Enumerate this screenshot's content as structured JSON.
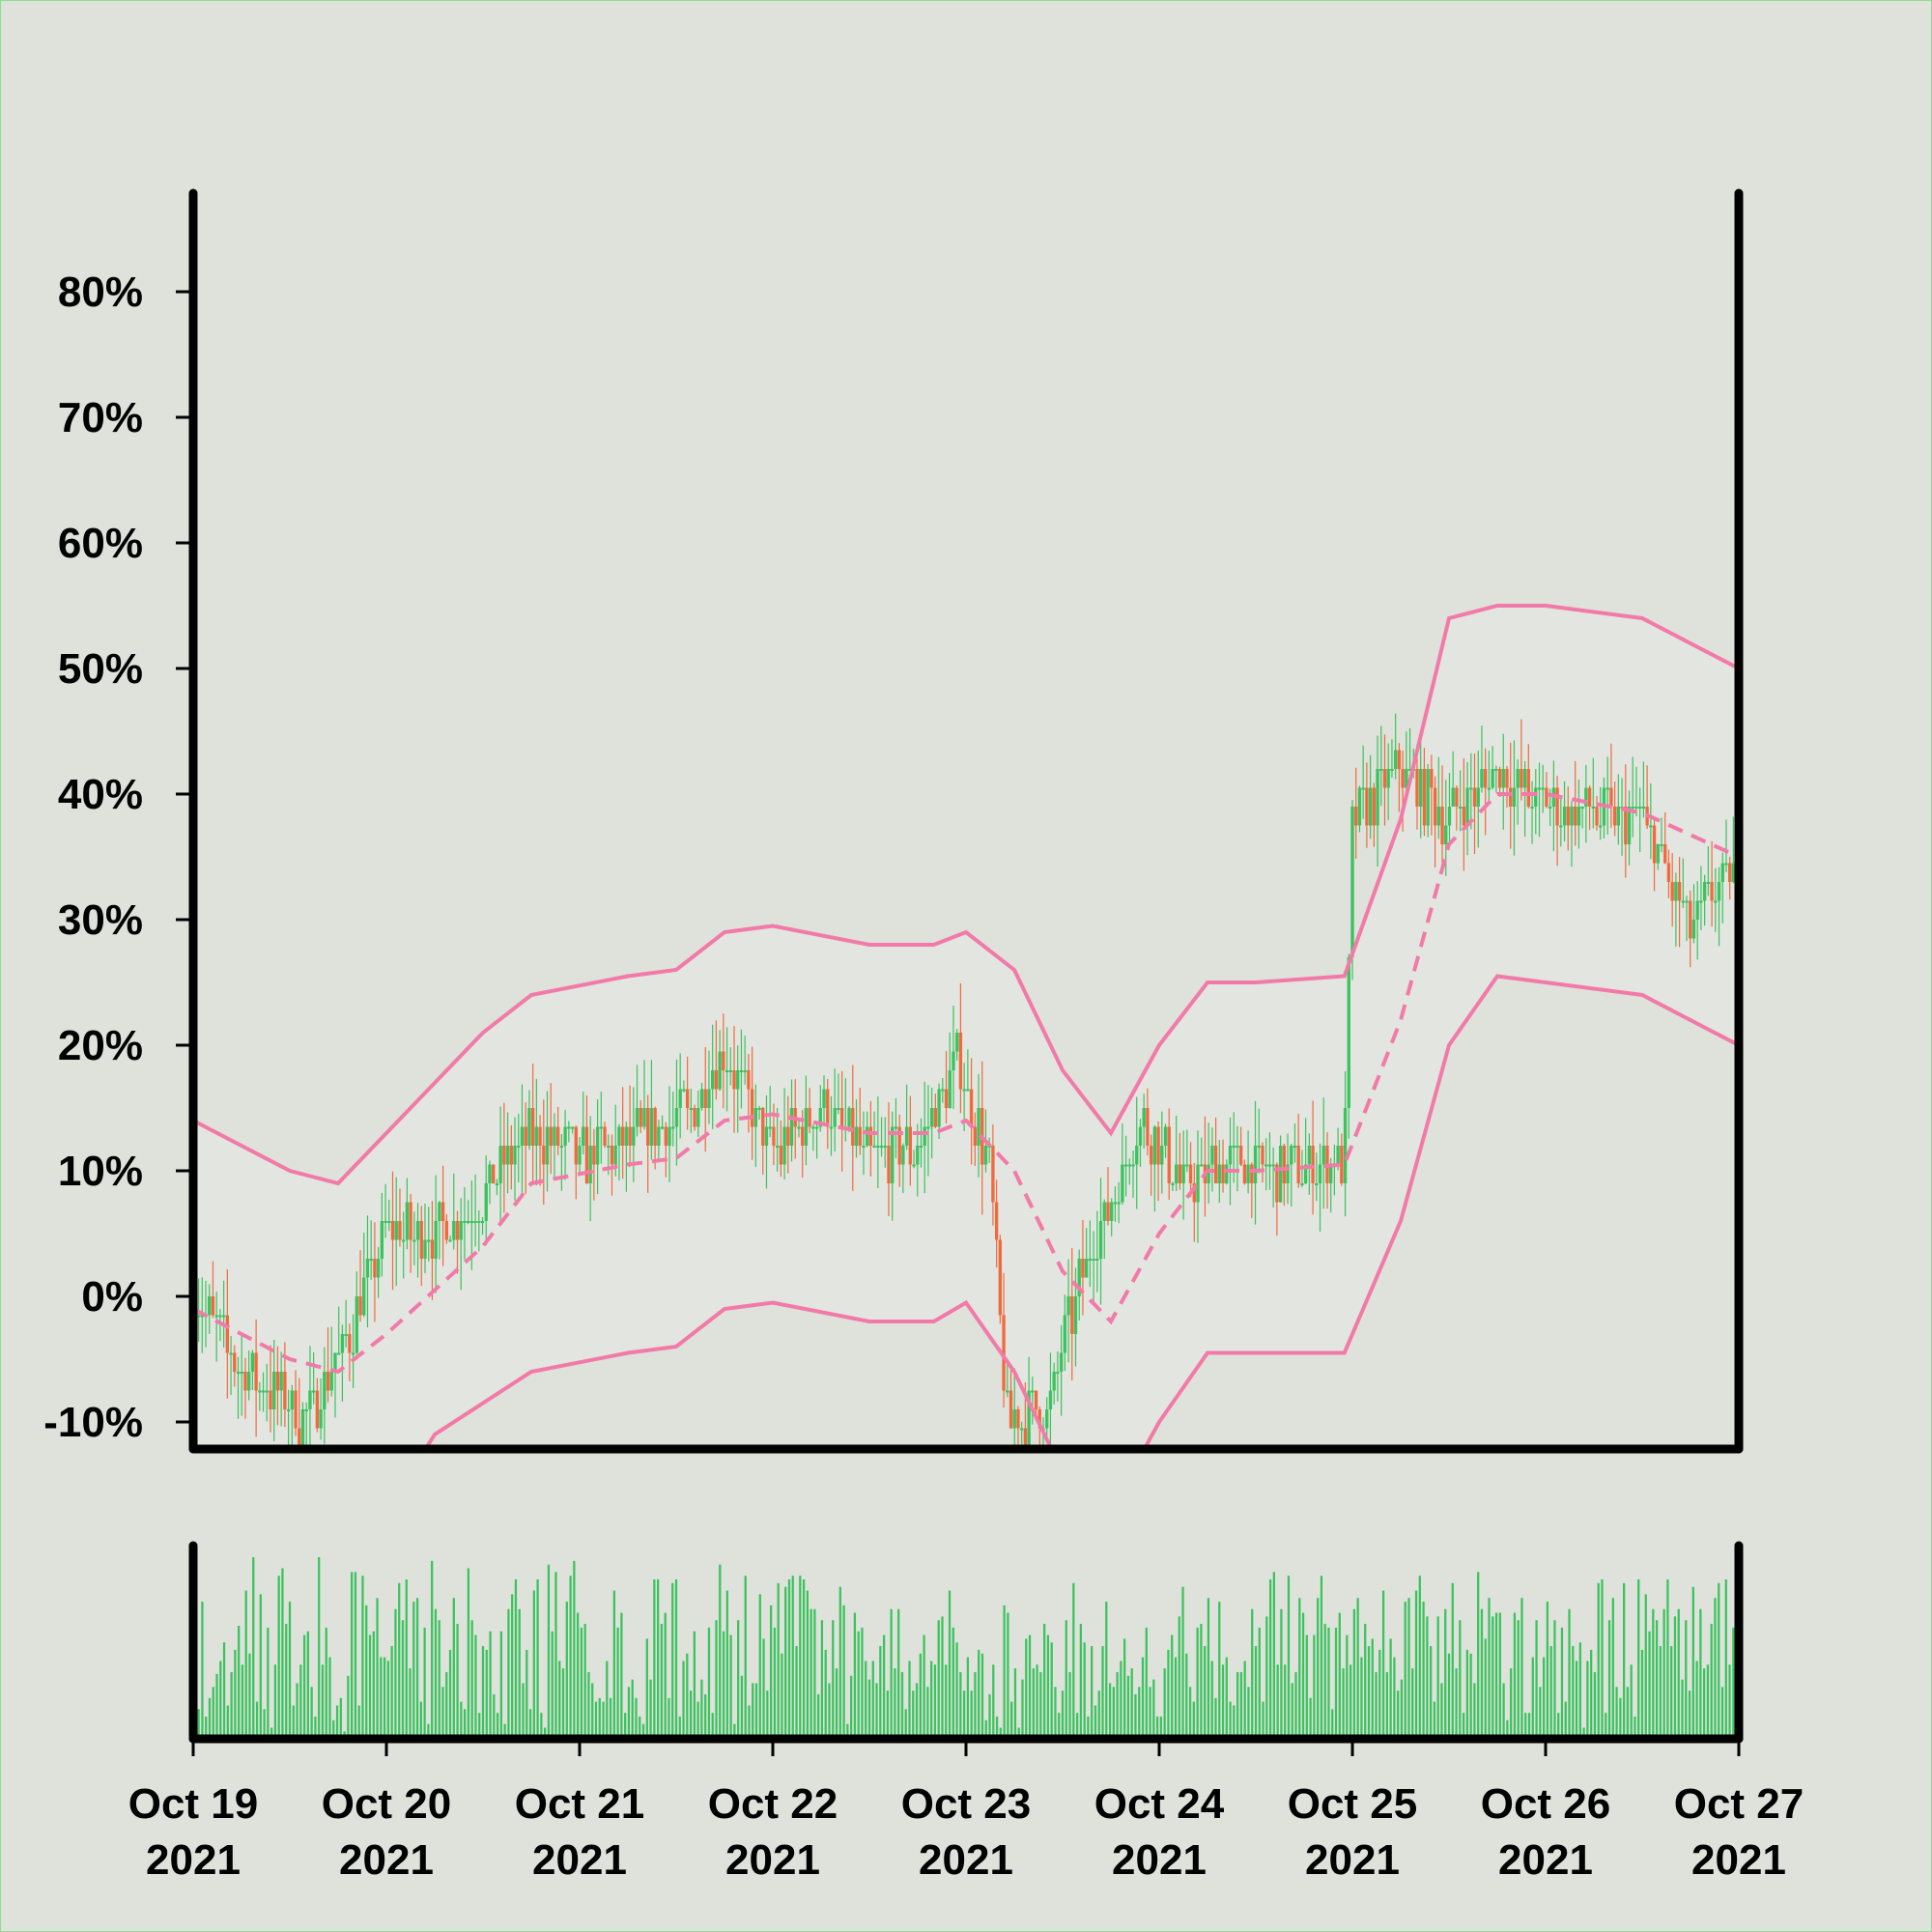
{
  "chart_data": [
    {
      "type": "candlestick",
      "title": "",
      "xlabel": "",
      "ylabel": "",
      "y_unit": "%",
      "y_ticks": [
        "80%",
        "70%",
        "60%",
        "50%",
        "40%",
        "30%",
        "20%",
        "10%",
        "0%",
        "-10%"
      ],
      "y_tick_values": [
        80,
        70,
        60,
        50,
        40,
        30,
        20,
        10,
        0,
        -10
      ],
      "ylim": [
        -12,
        88
      ],
      "xlim": [
        "2021-10-19",
        "2021-10-27"
      ],
      "grid": false,
      "colors": {
        "up": "#3cc25e",
        "down": "#f06a3e",
        "bands": "#f27aa8",
        "background": "#dee2db",
        "plot_fill": "#e3e6e0"
      },
      "anchors": [
        {
          "date": "2021-10-19 00:00",
          "close": 0
        },
        {
          "date": "2021-10-19 06:00",
          "close": -6
        },
        {
          "date": "2021-10-19 14:00",
          "close": -10
        },
        {
          "date": "2021-10-19 20:00",
          "close": -2
        },
        {
          "date": "2021-10-20 00:00",
          "close": 5
        },
        {
          "date": "2021-10-20 06:00",
          "close": 5
        },
        {
          "date": "2021-10-20 12:00",
          "close": 8
        },
        {
          "date": "2021-10-20 18:00",
          "close": 13
        },
        {
          "date": "2021-10-21 00:00",
          "close": 11
        },
        {
          "date": "2021-10-21 08:00",
          "close": 13
        },
        {
          "date": "2021-10-21 14:00",
          "close": 15
        },
        {
          "date": "2021-10-21 18:00",
          "close": 20
        },
        {
          "date": "2021-10-22 00:00",
          "close": 11
        },
        {
          "date": "2021-10-22 06:00",
          "close": 15
        },
        {
          "date": "2021-10-22 12:00",
          "close": 11
        },
        {
          "date": "2021-10-22 18:00",
          "close": 12
        },
        {
          "date": "2021-10-22 23:00",
          "close": 19
        },
        {
          "date": "2021-10-23 03:00",
          "close": 10
        },
        {
          "date": "2021-10-23 05:00",
          "close": -10
        },
        {
          "date": "2021-10-23 10:00",
          "close": -9
        },
        {
          "date": "2021-10-23 15:00",
          "close": 3
        },
        {
          "date": "2021-10-23 22:00",
          "close": 14
        },
        {
          "date": "2021-10-24 03:00",
          "close": 9
        },
        {
          "date": "2021-10-24 09:00",
          "close": 11
        },
        {
          "date": "2021-10-24 15:00",
          "close": 10
        },
        {
          "date": "2021-10-24 23:00",
          "close": 11
        },
        {
          "date": "2021-10-25 00:00",
          "close": 38
        },
        {
          "date": "2021-10-25 06:00",
          "close": 42
        },
        {
          "date": "2021-10-25 12:00",
          "close": 38
        },
        {
          "date": "2021-10-25 18:00",
          "close": 42
        },
        {
          "date": "2021-10-26 00:00",
          "close": 39
        },
        {
          "date": "2021-10-26 12:00",
          "close": 38
        },
        {
          "date": "2021-10-26 18:00",
          "close": 29
        },
        {
          "date": "2021-10-27 00:00",
          "close": 35
        }
      ],
      "bands": {
        "upper": [
          {
            "date": "2021-10-19 00:00",
            "value": 14
          },
          {
            "date": "2021-10-19 12:00",
            "value": 10
          },
          {
            "date": "2021-10-19 18:00",
            "value": 9
          },
          {
            "date": "2021-10-20 00:00",
            "value": 13
          },
          {
            "date": "2021-10-20 12:00",
            "value": 21
          },
          {
            "date": "2021-10-20 18:00",
            "value": 24
          },
          {
            "date": "2021-10-21 06:00",
            "value": 25.5
          },
          {
            "date": "2021-10-21 12:00",
            "value": 26
          },
          {
            "date": "2021-10-21 18:00",
            "value": 29
          },
          {
            "date": "2021-10-22 00:00",
            "value": 29.5
          },
          {
            "date": "2021-10-22 12:00",
            "value": 28
          },
          {
            "date": "2021-10-22 20:00",
            "value": 28
          },
          {
            "date": "2021-10-23 00:00",
            "value": 29
          },
          {
            "date": "2021-10-23 06:00",
            "value": 26
          },
          {
            "date": "2021-10-23 12:00",
            "value": 18
          },
          {
            "date": "2021-10-23 18:00",
            "value": 13
          },
          {
            "date": "2021-10-24 00:00",
            "value": 20
          },
          {
            "date": "2021-10-24 06:00",
            "value": 25
          },
          {
            "date": "2021-10-24 12:00",
            "value": 25
          },
          {
            "date": "2021-10-24 23:00",
            "value": 25.5
          },
          {
            "date": "2021-10-25 06:00",
            "value": 38
          },
          {
            "date": "2021-10-25 12:00",
            "value": 54
          },
          {
            "date": "2021-10-25 18:00",
            "value": 55
          },
          {
            "date": "2021-10-26 00:00",
            "value": 55
          },
          {
            "date": "2021-10-26 12:00",
            "value": 54
          },
          {
            "date": "2021-10-27 00:00",
            "value": 50
          }
        ],
        "middle": [
          {
            "date": "2021-10-19 00:00",
            "value": -1
          },
          {
            "date": "2021-10-19 12:00",
            "value": -5
          },
          {
            "date": "2021-10-19 18:00",
            "value": -6
          },
          {
            "date": "2021-10-20 00:00",
            "value": -3
          },
          {
            "date": "2021-10-20 12:00",
            "value": 4
          },
          {
            "date": "2021-10-20 18:00",
            "value": 9
          },
          {
            "date": "2021-10-21 06:00",
            "value": 10.5
          },
          {
            "date": "2021-10-21 12:00",
            "value": 11
          },
          {
            "date": "2021-10-21 18:00",
            "value": 14
          },
          {
            "date": "2021-10-22 00:00",
            "value": 14.5
          },
          {
            "date": "2021-10-22 12:00",
            "value": 13
          },
          {
            "date": "2021-10-22 20:00",
            "value": 13
          },
          {
            "date": "2021-10-23 00:00",
            "value": 14
          },
          {
            "date": "2021-10-23 06:00",
            "value": 10
          },
          {
            "date": "2021-10-23 12:00",
            "value": 2
          },
          {
            "date": "2021-10-23 18:00",
            "value": -2
          },
          {
            "date": "2021-10-24 00:00",
            "value": 5
          },
          {
            "date": "2021-10-24 06:00",
            "value": 10
          },
          {
            "date": "2021-10-24 12:00",
            "value": 10
          },
          {
            "date": "2021-10-24 23:00",
            "value": 10.5
          },
          {
            "date": "2021-10-25 06:00",
            "value": 22
          },
          {
            "date": "2021-10-25 12:00",
            "value": 36
          },
          {
            "date": "2021-10-25 18:00",
            "value": 40
          },
          {
            "date": "2021-10-26 00:00",
            "value": 40
          },
          {
            "date": "2021-10-26 12:00",
            "value": 38.5
          },
          {
            "date": "2021-10-27 00:00",
            "value": 35
          }
        ],
        "lower": [
          {
            "date": "2021-10-19 00:00",
            "value": -16
          },
          {
            "date": "2021-10-19 12:00",
            "value": -20
          },
          {
            "date": "2021-10-19 18:00",
            "value": -21
          },
          {
            "date": "2021-10-20 00:00",
            "value": -17
          },
          {
            "date": "2021-10-20 06:00",
            "value": -11
          },
          {
            "date": "2021-10-20 18:00",
            "value": -6
          },
          {
            "date": "2021-10-21 06:00",
            "value": -4.5
          },
          {
            "date": "2021-10-21 12:00",
            "value": -4
          },
          {
            "date": "2021-10-21 18:00",
            "value": -1
          },
          {
            "date": "2021-10-22 00:00",
            "value": -0.5
          },
          {
            "date": "2021-10-22 12:00",
            "value": -2
          },
          {
            "date": "2021-10-22 20:00",
            "value": -2
          },
          {
            "date": "2021-10-23 00:00",
            "value": -0.5
          },
          {
            "date": "2021-10-23 06:00",
            "value": -6
          },
          {
            "date": "2021-10-23 12:00",
            "value": -14
          },
          {
            "date": "2021-10-23 18:00",
            "value": -17
          },
          {
            "date": "2021-10-24 00:00",
            "value": -10
          },
          {
            "date": "2021-10-24 06:00",
            "value": -4.5
          },
          {
            "date": "2021-10-24 12:00",
            "value": -4.5
          },
          {
            "date": "2021-10-24 23:00",
            "value": -4.5
          },
          {
            "date": "2021-10-25 06:00",
            "value": 6
          },
          {
            "date": "2021-10-25 12:00",
            "value": 20
          },
          {
            "date": "2021-10-25 18:00",
            "value": 25.5
          },
          {
            "date": "2021-10-26 00:00",
            "value": 25
          },
          {
            "date": "2021-10-26 12:00",
            "value": 24
          },
          {
            "date": "2021-10-27 00:00",
            "value": 20
          }
        ]
      }
    },
    {
      "type": "bar",
      "title": "",
      "xlabel": "",
      "ylabel": "",
      "color": "#3cc25e",
      "xlim": [
        "2021-10-19",
        "2021-10-27"
      ],
      "x_ticks": [
        {
          "date": "2021-10-19",
          "line1": "Oct 19",
          "line2": "2021"
        },
        {
          "date": "2021-10-20",
          "line1": "Oct 20",
          "line2": "2021"
        },
        {
          "date": "2021-10-21",
          "line1": "Oct 21",
          "line2": "2021"
        },
        {
          "date": "2021-10-22",
          "line1": "Oct 22",
          "line2": "2021"
        },
        {
          "date": "2021-10-23",
          "line1": "Oct 23",
          "line2": "2021"
        },
        {
          "date": "2021-10-24",
          "line1": "Oct 24",
          "line2": "2021"
        },
        {
          "date": "2021-10-25",
          "line1": "Oct 25",
          "line2": "2021"
        },
        {
          "date": "2021-10-26",
          "line1": "Oct 26",
          "line2": "2021"
        },
        {
          "date": "2021-10-27",
          "line1": "Oct 27",
          "line2": "2021"
        }
      ],
      "values": [
        18,
        16,
        74,
        12,
        22,
        28,
        35,
        42,
        52,
        18,
        36,
        48,
        61,
        40,
        80,
        46,
        98,
        20,
        78,
        16,
        60,
        6,
        40,
        88,
        92,
        62,
        74,
        18,
        30,
        40,
        56,
        58,
        28,
        12,
        98,
        40,
        60,
        44,
        10,
        18,
        22,
        4,
        34,
        90,
        90,
        18,
        88,
        72,
        56,
        58,
        76,
        44,
        44,
        42,
        50,
        70,
        84,
        64,
        86,
        38,
        74,
        76,
        20,
        60,
        8,
        96,
        70,
        64,
        28,
        36,
        48,
        76,
        62,
        20,
        16,
        92,
        64,
        56,
        14,
        50,
        48,
        58,
        24,
        14,
        58,
        8,
        70,
        78,
        86,
        70,
        30,
        48,
        16,
        80,
        86,
        14,
        6,
        94,
        58,
        90,
        42,
        38,
        74,
        88,
        96,
        68,
        60,
        62,
        36,
        30,
        20,
        22,
        20,
        42,
        22,
        80,
        60,
        68,
        14,
        28,
        32,
        22,
        12,
        8,
        54,
        32,
        86,
        86,
        62,
        68,
        22,
        84,
        86,
        12,
        42,
        46,
        26,
        58,
        20,
        32,
        24,
        60,
        14,
        64,
        94,
        58,
        80,
        56,
        8,
        64,
        34,
        88,
        18,
        30,
        30,
        78,
        54,
        26,
        72,
        60,
        84,
        46,
        82,
        86,
        88,
        50,
        88,
        86,
        80,
        70,
        70,
        24,
        64,
        48,
        30,
        64,
        38,
        82,
        72,
        8,
        34,
        68,
        58,
        60,
        42,
        32,
        42,
        30,
        50,
        56,
        26,
        70,
        38,
        70,
        36,
        16,
        42,
        26,
        30,
        46,
        56,
        28,
        42,
        40,
        64,
        66,
        40,
        80,
        60,
        52,
        36,
        26,
        44,
        26,
        36,
        48,
        46,
        10,
        24,
        40,
        12,
        6,
        72,
        68,
        20,
        38,
        6,
        32,
        54,
        56,
        38,
        40,
        36,
        62,
        56,
        52,
        28,
        14,
        26,
        64,
        36,
        84,
        14,
        62,
        52,
        12,
        50,
        18,
        26,
        50,
        74,
        30,
        28,
        36,
        42,
        54,
        34,
        38,
        24,
        28,
        44,
        60,
        28,
        32,
        12,
        12,
        38,
        48,
        56,
        44,
        66,
        82,
        46,
        28,
        20,
        60,
        62,
        50,
        76,
        42,
        22,
        74,
        40,
        44,
        20,
        18,
        36,
        36,
        42,
        28,
        70,
        50,
        60,
        20,
        66,
        86,
        90,
        40,
        70,
        40,
        88,
        30,
        36,
        76,
        68,
        56,
        22,
        56,
        76,
        88,
        62,
        60,
        16,
        60,
        68,
        38,
        56,
        40,
        70,
        76,
        44,
        62,
        50,
        54,
        36,
        48,
        80,
        36,
        54,
        44,
        26,
        32,
        74,
        76,
        38,
        80,
        88,
        74,
        66,
        50,
        20,
        66,
        30,
        70,
        46,
        84,
        38,
        64,
        14,
        48,
        46,
        30,
        90,
        70,
        54,
        76,
        66,
        68,
        68,
        30,
        10,
        38,
        68,
        64,
        76,
        14,
        14,
        44,
        64,
        28,
        44,
        74,
        50,
        64,
        14,
        60,
        20,
        70,
        50,
        42,
        52,
        6,
        42,
        48,
        36,
        84,
        86,
        14,
        64,
        76,
        28,
        22,
        84,
        28,
        40,
        12,
        86,
        48,
        78,
        58,
        70,
        64,
        50,
        70,
        86,
        50,
        66,
        70,
        32,
        64,
        26,
        82,
        42,
        70,
        38,
        40,
        62,
        76,
        84,
        28,
        86,
        40,
        60,
        42
      ]
    }
  ]
}
